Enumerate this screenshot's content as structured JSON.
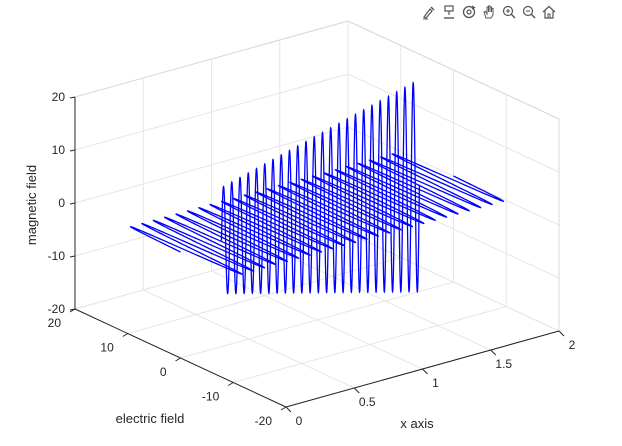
{
  "toolbar": {
    "buttons": [
      {
        "name": "brush-icon"
      },
      {
        "name": "data-tips-icon"
      },
      {
        "name": "rotate-3d-icon"
      },
      {
        "name": "pan-icon"
      },
      {
        "name": "zoom-in-icon"
      },
      {
        "name": "zoom-out-icon"
      },
      {
        "name": "home-icon"
      }
    ]
  },
  "chart_data": {
    "type": "line",
    "xlabel": "x axis",
    "ylabel": "electric field",
    "zlabel": "magnetic field",
    "xlim": [
      0,
      2
    ],
    "ylim": [
      -20,
      20
    ],
    "zlim": [
      -20,
      20
    ],
    "x_ticks": [
      "0",
      "0.5",
      "1",
      "1.5",
      "2"
    ],
    "y_ticks": [
      "-20",
      "-10",
      "0",
      "10",
      "20"
    ],
    "z_ticks": [
      "-20",
      "-10",
      "0",
      "10",
      "20"
    ],
    "grid": true,
    "series_color": "#0000ff",
    "series": [
      {
        "plane": "x-y",
        "amplitude": 10,
        "cycles": 24,
        "x_range": [
          0,
          2
        ]
      },
      {
        "plane": "x-z",
        "amplitude": 10,
        "amplitude_end": 20,
        "cycles": 24,
        "x_range": [
          0.3,
          1.75
        ]
      }
    ]
  }
}
